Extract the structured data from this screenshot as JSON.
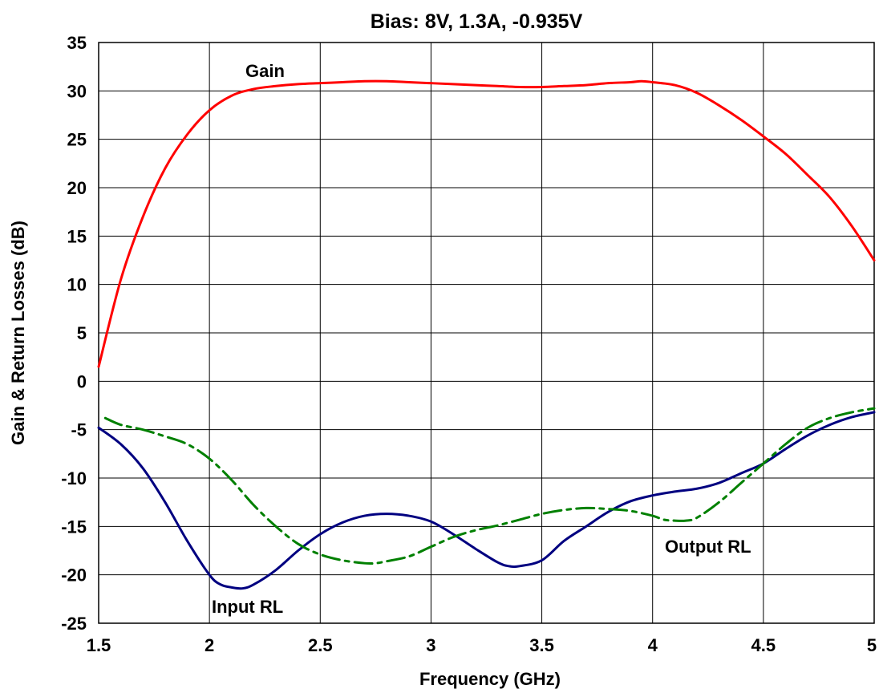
{
  "chart_data": {
    "type": "line",
    "title": "Bias: 8V, 1.3A, -0.935V",
    "xlabel": "Frequency (GHz)",
    "ylabel": "Gain & Return Losses (dB)",
    "xlim": [
      1.5,
      5
    ],
    "ylim": [
      -25,
      35
    ],
    "x_ticks": [
      1.5,
      2,
      2.5,
      3,
      3.5,
      4,
      4.5,
      5
    ],
    "x_tick_labels": [
      "1.5",
      "2",
      "2.5",
      "3",
      "3.5",
      "4",
      "4.5",
      "5"
    ],
    "y_ticks": [
      -25,
      -20,
      -15,
      -10,
      -5,
      0,
      5,
      10,
      15,
      20,
      25,
      30,
      35
    ],
    "y_tick_labels": [
      "-25",
      "-20",
      "-15",
      "-10",
      "-5",
      "0",
      "5",
      "10",
      "15",
      "20",
      "25",
      "30",
      "35"
    ],
    "grid": true,
    "legend": "none",
    "series": [
      {
        "id": "gain",
        "name": "Gain",
        "color": "#ff0000",
        "dash": "solid",
        "x": [
          1.5,
          1.6,
          1.7,
          1.8,
          1.9,
          2.0,
          2.1,
          2.2,
          2.3,
          2.4,
          2.5,
          2.6,
          2.7,
          2.8,
          2.9,
          3.0,
          3.1,
          3.2,
          3.3,
          3.4,
          3.5,
          3.6,
          3.7,
          3.8,
          3.9,
          3.95,
          4.0,
          4.1,
          4.2,
          4.3,
          4.4,
          4.5,
          4.6,
          4.7,
          4.8,
          4.9,
          5.0
        ],
        "y": [
          1.5,
          10.5,
          17.0,
          22.0,
          25.5,
          28.0,
          29.5,
          30.2,
          30.5,
          30.7,
          30.8,
          30.9,
          31.0,
          31.0,
          30.9,
          30.8,
          30.7,
          30.6,
          30.5,
          30.4,
          30.4,
          30.5,
          30.6,
          30.8,
          30.9,
          31.0,
          30.9,
          30.6,
          29.8,
          28.5,
          27.0,
          25.3,
          23.5,
          21.3,
          19.0,
          16.0,
          12.5
        ]
      },
      {
        "id": "input_rl",
        "name": "Input RL",
        "color": "#000080",
        "dash": "solid",
        "x": [
          1.5,
          1.6,
          1.7,
          1.8,
          1.9,
          2.0,
          2.05,
          2.1,
          2.15,
          2.2,
          2.3,
          2.4,
          2.5,
          2.6,
          2.7,
          2.8,
          2.9,
          3.0,
          3.1,
          3.2,
          3.3,
          3.35,
          3.4,
          3.5,
          3.6,
          3.7,
          3.8,
          3.9,
          4.0,
          4.1,
          4.2,
          4.3,
          4.4,
          4.5,
          4.6,
          4.7,
          4.8,
          4.9,
          5.0
        ],
        "y": [
          -4.8,
          -6.5,
          -9.0,
          -12.5,
          -16.5,
          -20.0,
          -21.0,
          -21.3,
          -21.4,
          -21.0,
          -19.5,
          -17.5,
          -15.8,
          -14.6,
          -13.9,
          -13.7,
          -13.9,
          -14.5,
          -15.8,
          -17.3,
          -18.7,
          -19.1,
          -19.1,
          -18.5,
          -16.5,
          -15.0,
          -13.5,
          -12.4,
          -11.8,
          -11.4,
          -11.1,
          -10.5,
          -9.5,
          -8.5,
          -7.0,
          -5.6,
          -4.5,
          -3.7,
          -3.2
        ]
      },
      {
        "id": "output_rl",
        "name": "Output RL",
        "color": "#008000",
        "dash": "dashed",
        "x": [
          1.53,
          1.6,
          1.7,
          1.8,
          1.9,
          2.0,
          2.1,
          2.2,
          2.3,
          2.4,
          2.5,
          2.6,
          2.7,
          2.75,
          2.8,
          2.9,
          3.0,
          3.1,
          3.2,
          3.3,
          3.4,
          3.5,
          3.6,
          3.7,
          3.8,
          3.9,
          4.0,
          4.05,
          4.1,
          4.15,
          4.2,
          4.3,
          4.4,
          4.5,
          4.6,
          4.7,
          4.8,
          4.9,
          5.0
        ],
        "y": [
          -3.8,
          -4.5,
          -5.0,
          -5.7,
          -6.5,
          -8.0,
          -10.2,
          -12.8,
          -15.0,
          -16.8,
          -17.9,
          -18.5,
          -18.8,
          -18.8,
          -18.6,
          -18.1,
          -17.1,
          -16.1,
          -15.4,
          -14.9,
          -14.3,
          -13.7,
          -13.3,
          -13.1,
          -13.2,
          -13.4,
          -13.9,
          -14.3,
          -14.4,
          -14.4,
          -14.1,
          -12.5,
          -10.5,
          -8.5,
          -6.5,
          -4.8,
          -3.8,
          -3.2,
          -2.8
        ]
      }
    ],
    "annotations": [
      {
        "text": "Gain",
        "series": "gain"
      },
      {
        "text": "Input RL",
        "series": "input_rl"
      },
      {
        "text": "Output RL",
        "series": "output_rl"
      }
    ]
  }
}
